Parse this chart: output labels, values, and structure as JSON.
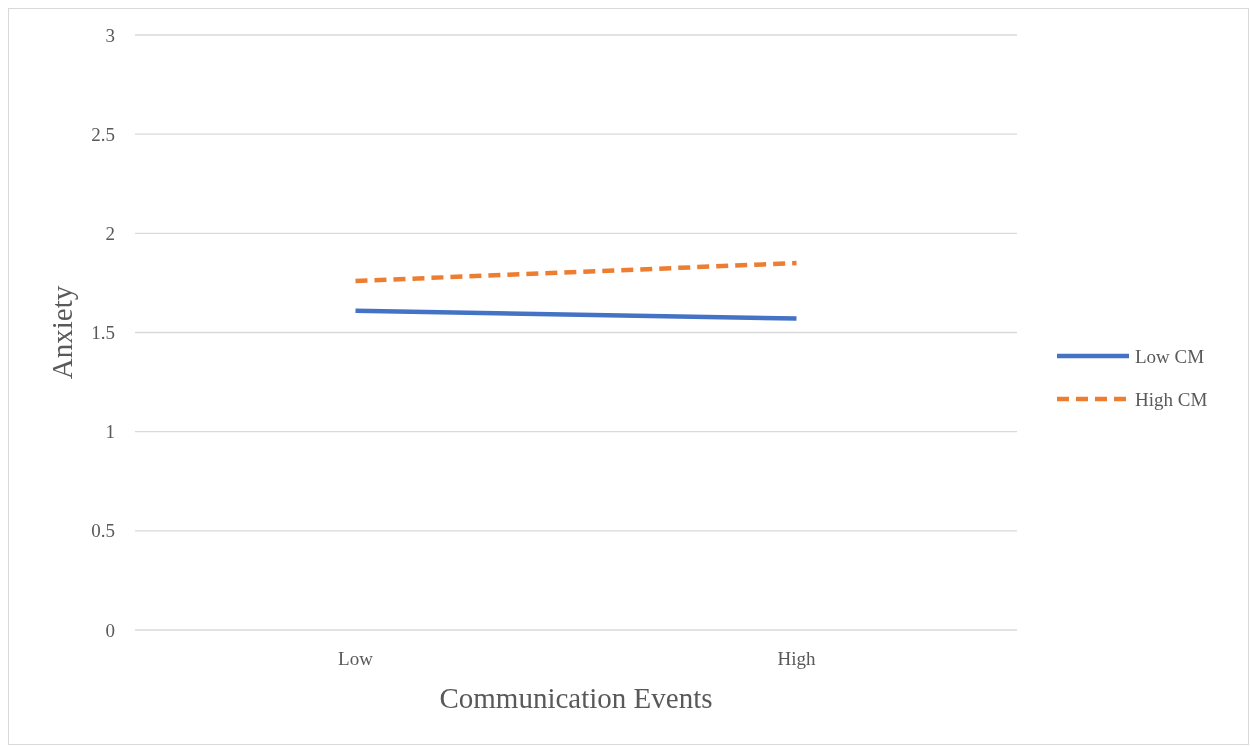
{
  "chart_data": {
    "type": "line",
    "xlabel": "Communication Events",
    "ylabel": "Anxiety",
    "categories": [
      "Low",
      "High"
    ],
    "series": [
      {
        "name": "Low CM",
        "color": "#4472c4",
        "values": [
          1.61,
          1.57
        ],
        "line_style": "solid"
      },
      {
        "name": "High CM",
        "color": "#ed7d31",
        "values": [
          1.76,
          1.85
        ],
        "line_style": "dashed"
      }
    ],
    "ylim": [
      0,
      3
    ],
    "yticks": [
      0,
      0.5,
      1,
      1.5,
      2,
      2.5,
      3
    ],
    "grid": "y",
    "legend": "right",
    "marker": "none"
  }
}
